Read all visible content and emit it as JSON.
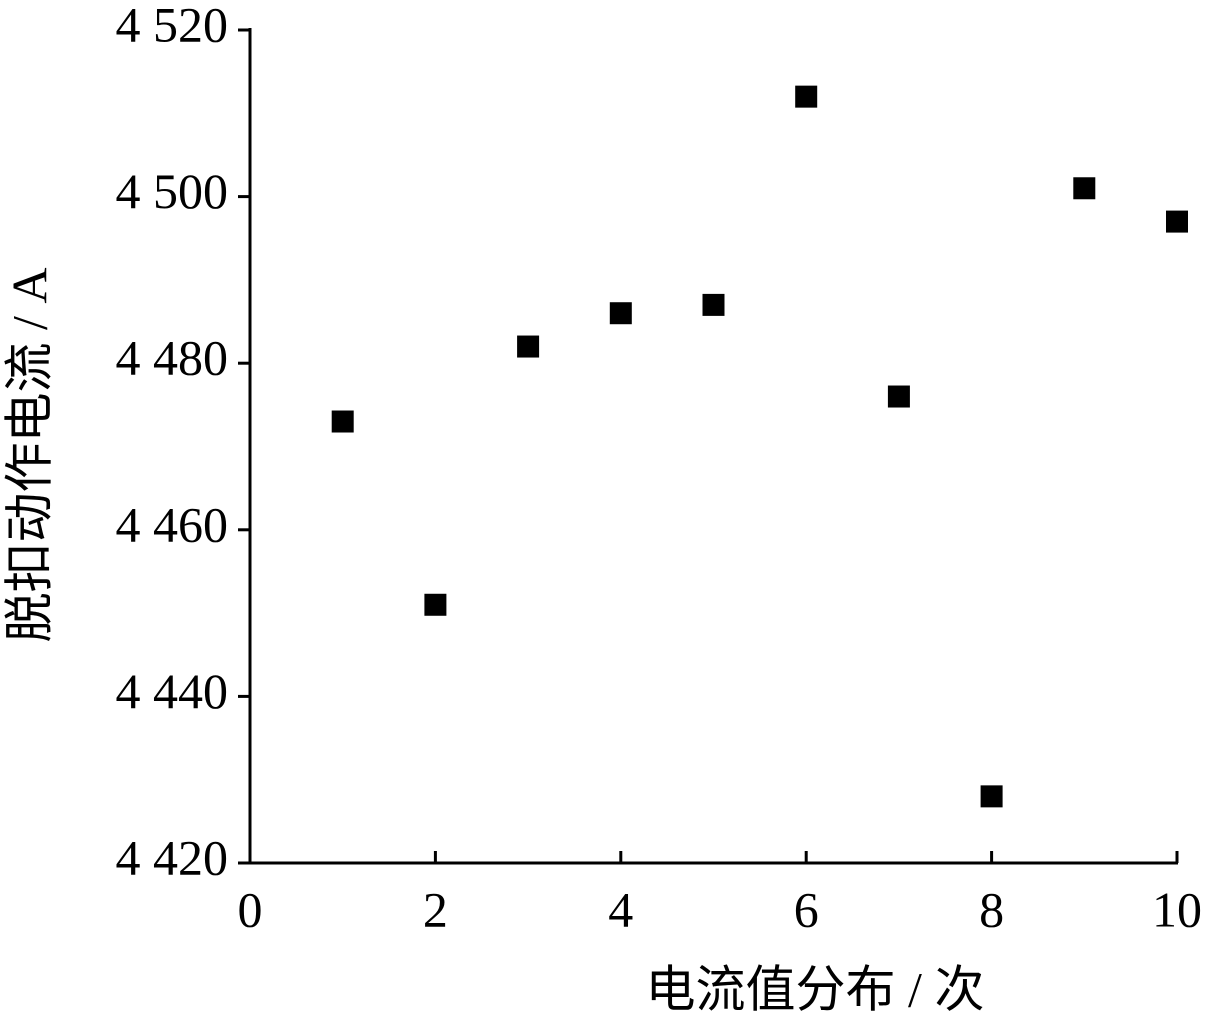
{
  "chart_data": {
    "type": "scatter",
    "x_label": "电流值分布 / 次",
    "y_label": "脱扣动作电流 / A",
    "x": [
      1,
      2,
      3,
      4,
      5,
      6,
      7,
      8,
      9,
      10
    ],
    "series": [
      {
        "color": "#000000",
        "values": [
          4473,
          4451,
          4482,
          4486,
          4487,
          4512,
          4476,
          4428,
          4501,
          4497
        ]
      }
    ],
    "xlim": [
      0,
      10
    ],
    "xticks": [
      0,
      2,
      4,
      6,
      8,
      10
    ],
    "ylim": [
      4420,
      4520
    ],
    "yticks": [
      {
        "value": 4420,
        "label": "4 420"
      },
      {
        "value": 4440,
        "label": "4 440"
      },
      {
        "value": 4460,
        "label": "4 460"
      },
      {
        "value": 4480,
        "label": "4 480"
      },
      {
        "value": 4500,
        "label": "4 500"
      },
      {
        "value": 4520,
        "label": "4 520"
      }
    ]
  }
}
